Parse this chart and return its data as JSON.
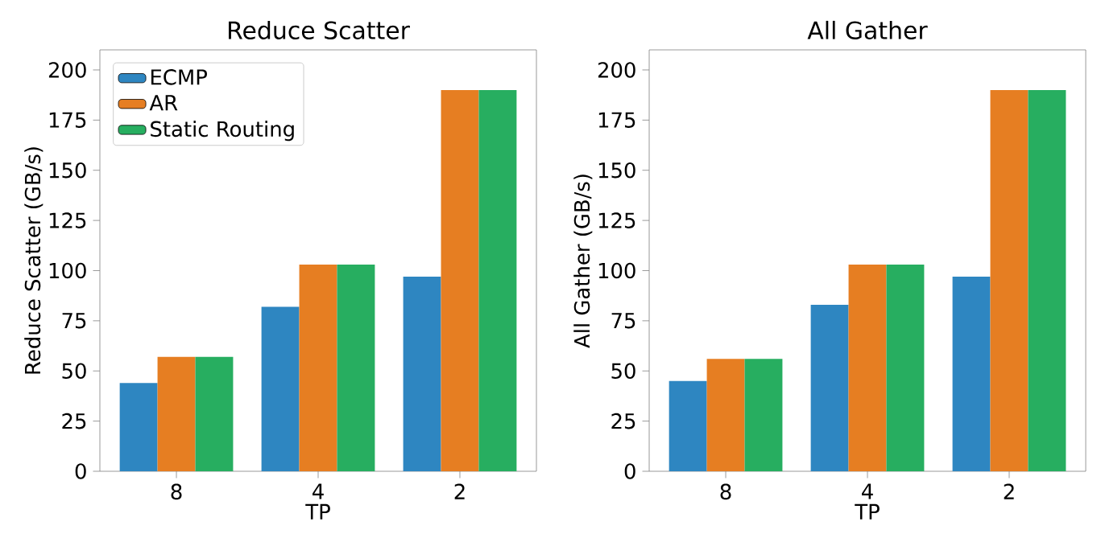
{
  "chart_data": [
    {
      "type": "bar",
      "title": "Reduce Scatter",
      "xlabel": "TP",
      "ylabel": "Reduce Scatter (GB/s)",
      "categories": [
        "8",
        "4",
        "2"
      ],
      "ylim": [
        0,
        210
      ],
      "yticks": [
        0,
        25,
        50,
        75,
        100,
        125,
        150,
        175,
        200
      ],
      "legend": "top left",
      "series": [
        {
          "name": "ECMP",
          "color": "#2e86c1",
          "values": [
            44,
            82,
            97
          ]
        },
        {
          "name": "AR",
          "color": "#e67e22",
          "values": [
            57,
            103,
            190
          ]
        },
        {
          "name": "Static Routing",
          "color": "#27ae60",
          "values": [
            57,
            103,
            190
          ]
        }
      ]
    },
    {
      "type": "bar",
      "title": "All Gather",
      "xlabel": "TP",
      "ylabel": "All Gather (GB/s)",
      "categories": [
        "8",
        "4",
        "2"
      ],
      "ylim": [
        0,
        210
      ],
      "yticks": [
        0,
        25,
        50,
        75,
        100,
        125,
        150,
        175,
        200
      ],
      "series": [
        {
          "color": "#2e86c1",
          "values": [
            45,
            83,
            97
          ]
        },
        {
          "color": "#e67e22",
          "values": [
            56,
            103,
            190
          ]
        },
        {
          "color": "#27ae60",
          "values": [
            56,
            103,
            190
          ]
        }
      ]
    }
  ]
}
